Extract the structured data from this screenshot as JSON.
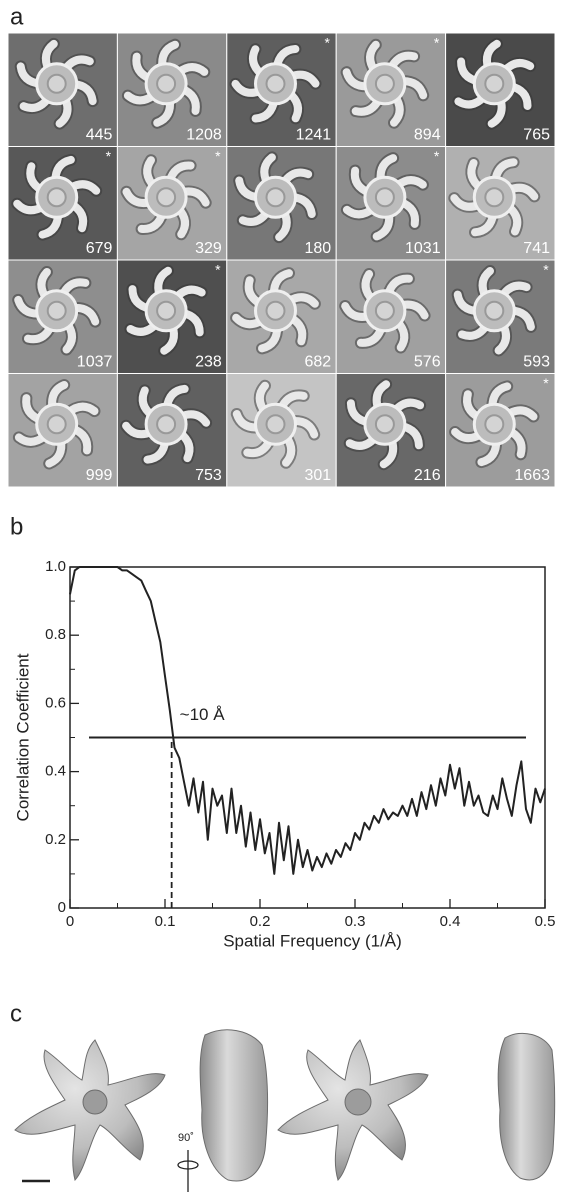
{
  "panel_a": {
    "label": "a",
    "cells": [
      {
        "count": 445
      },
      {
        "count": 1208
      },
      {
        "count": 1241,
        "mark": "*"
      },
      {
        "count": 894,
        "mark": "*"
      },
      {
        "count": 765
      },
      {
        "count": 679,
        "mark": "*"
      },
      {
        "count": 329,
        "mark": "*"
      },
      {
        "count": 180
      },
      {
        "count": 1031,
        "mark": "*"
      },
      {
        "count": 741
      },
      {
        "count": 1037
      },
      {
        "count": 238,
        "mark": "*"
      },
      {
        "count": 682
      },
      {
        "count": 576
      },
      {
        "count": 593,
        "mark": "*"
      },
      {
        "count": 999
      },
      {
        "count": 753
      },
      {
        "count": 301
      },
      {
        "count": 216
      },
      {
        "count": 1663,
        "mark": "*"
      }
    ]
  },
  "panel_b": {
    "label": "b"
  },
  "chart_data": {
    "type": "line",
    "x_label": "Spatial Frequency (1/Å)",
    "y_label": "Correlation Coefficient",
    "annotation": "~10 Å",
    "xlim": [
      0,
      0.5
    ],
    "ylim": [
      0,
      1
    ],
    "xticks": [
      0,
      0.1,
      0.2,
      0.3,
      0.4,
      0.5
    ],
    "yticks": [
      0,
      0.2,
      0.4,
      0.6,
      0.8,
      {
        "value": 1,
        "label": "1.0"
      }
    ],
    "x_minor_ticks": [
      0.05,
      0.15,
      0.25,
      0.35,
      0.45
    ],
    "y_minor_ticks": [
      0.1,
      0.3,
      0.5,
      0.7,
      0.9
    ],
    "reference_line": {
      "y": 0.5,
      "x_start": 0.02,
      "x_end": 0.48
    },
    "resolution_line": {
      "x": 0.107
    },
    "color": "#222222",
    "x": [
      0,
      0.005,
      0.01,
      0.015,
      0.02,
      0.025,
      0.03,
      0.035,
      0.04,
      0.045,
      0.05,
      0.055,
      0.06,
      0.065,
      0.07,
      0.075,
      0.08,
      0.085,
      0.09,
      0.095,
      0.1,
      0.105,
      0.11,
      0.115,
      0.12,
      0.125,
      0.13,
      0.135,
      0.14,
      0.145,
      0.15,
      0.155,
      0.16,
      0.165,
      0.17,
      0.175,
      0.18,
      0.185,
      0.19,
      0.195,
      0.2,
      0.205,
      0.21,
      0.215,
      0.22,
      0.225,
      0.23,
      0.235,
      0.24,
      0.245,
      0.25,
      0.255,
      0.26,
      0.265,
      0.27,
      0.275,
      0.28,
      0.285,
      0.29,
      0.295,
      0.3,
      0.305,
      0.31,
      0.315,
      0.32,
      0.325,
      0.33,
      0.335,
      0.34,
      0.345,
      0.35,
      0.355,
      0.36,
      0.365,
      0.37,
      0.375,
      0.38,
      0.385,
      0.39,
      0.395,
      0.4,
      0.405,
      0.41,
      0.415,
      0.42,
      0.425,
      0.43,
      0.435,
      0.44,
      0.445,
      0.45,
      0.455,
      0.46,
      0.465,
      0.47,
      0.475,
      0.48,
      0.485,
      0.49,
      0.495,
      0.5
    ],
    "values": [
      0.92,
      0.99,
      1,
      1,
      1,
      1,
      1,
      1,
      1,
      1,
      1,
      0.99,
      0.99,
      0.98,
      0.97,
      0.96,
      0.93,
      0.9,
      0.84,
      0.78,
      0.68,
      0.58,
      0.47,
      0.44,
      0.37,
      0.3,
      0.38,
      0.28,
      0.37,
      0.2,
      0.35,
      0.3,
      0.33,
      0.22,
      0.35,
      0.22,
      0.3,
      0.18,
      0.28,
      0.17,
      0.26,
      0.16,
      0.22,
      0.1,
      0.25,
      0.14,
      0.24,
      0.1,
      0.2,
      0.12,
      0.17,
      0.11,
      0.15,
      0.12,
      0.16,
      0.13,
      0.17,
      0.15,
      0.19,
      0.17,
      0.22,
      0.2,
      0.25,
      0.23,
      0.27,
      0.25,
      0.29,
      0.26,
      0.28,
      0.27,
      0.3,
      0.27,
      0.32,
      0.27,
      0.34,
      0.29,
      0.36,
      0.3,
      0.38,
      0.33,
      0.42,
      0.35,
      0.41,
      0.3,
      0.37,
      0.3,
      0.33,
      0.28,
      0.27,
      0.33,
      0.29,
      0.38,
      0.32,
      0.27,
      0.36,
      0.43,
      0.29,
      0.25,
      0.35,
      0.31,
      0.35
    ]
  },
  "panel_c": {
    "label": "c",
    "rotation_label": "90˚"
  }
}
